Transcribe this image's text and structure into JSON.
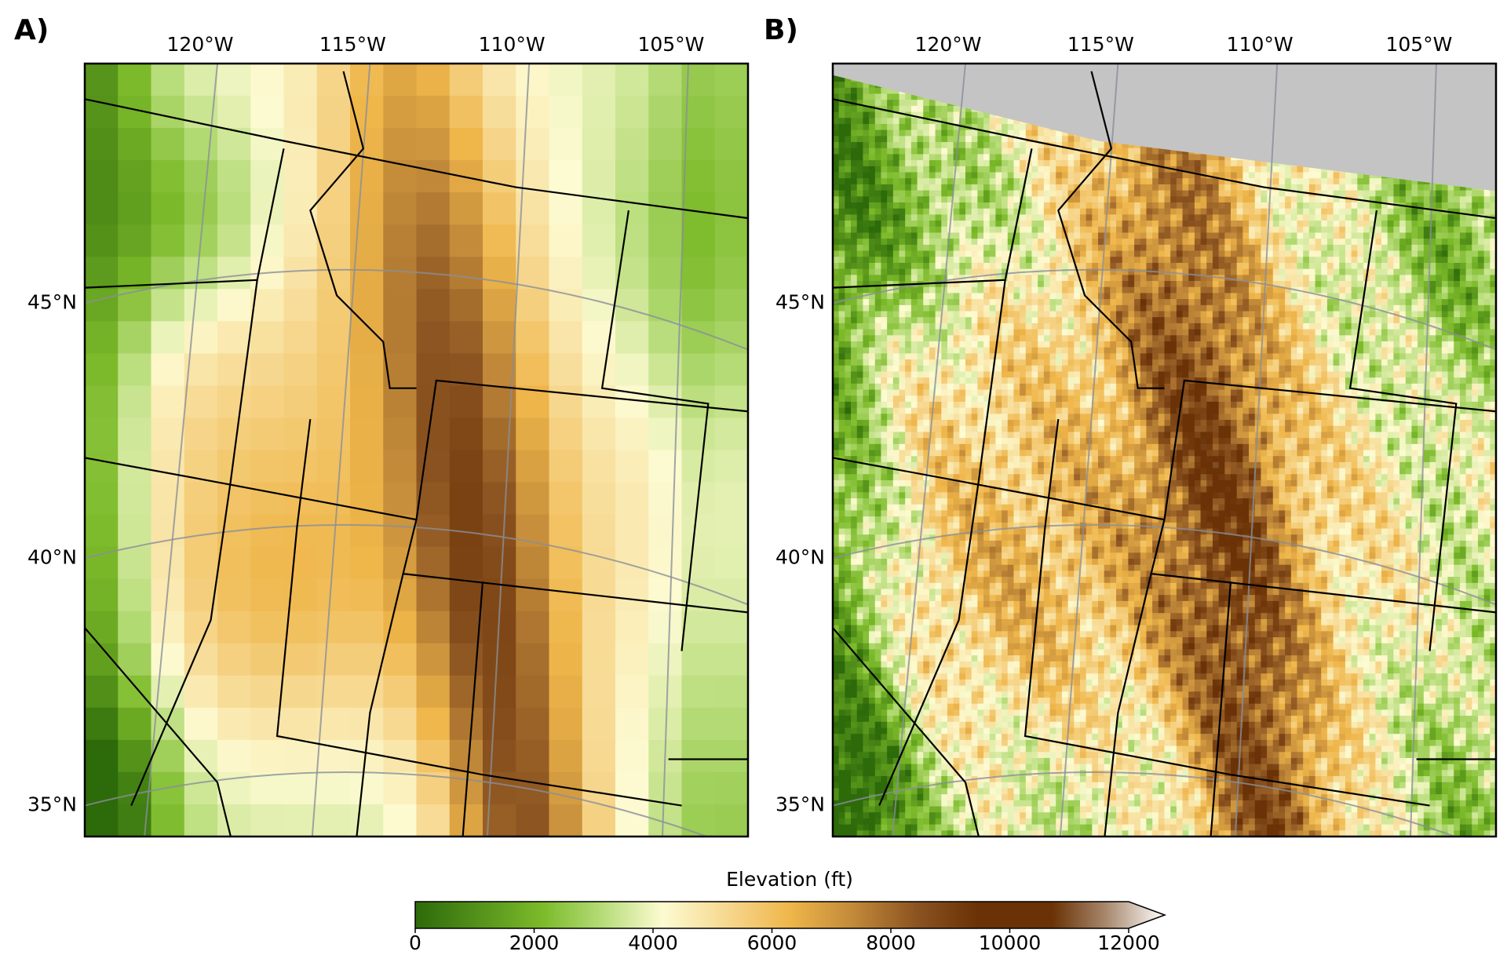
{
  "panels": [
    {
      "label": "A)",
      "lon_labels": [
        "120°W",
        "115°W",
        "110°W",
        "105°W"
      ],
      "lat_labels": [
        "45°N",
        "40°N",
        "35°N"
      ]
    },
    {
      "label": "B)",
      "lon_labels": [
        "120°W",
        "115°W",
        "110°W",
        "105°W"
      ],
      "lat_labels": [
        "45°N",
        "40°N",
        "35°N"
      ]
    }
  ],
  "colorbar": {
    "label": "Elevation (ft)",
    "range": [
      0,
      12000
    ],
    "ticks": [
      0,
      2000,
      4000,
      6000,
      8000,
      10000,
      12000
    ]
  }
}
